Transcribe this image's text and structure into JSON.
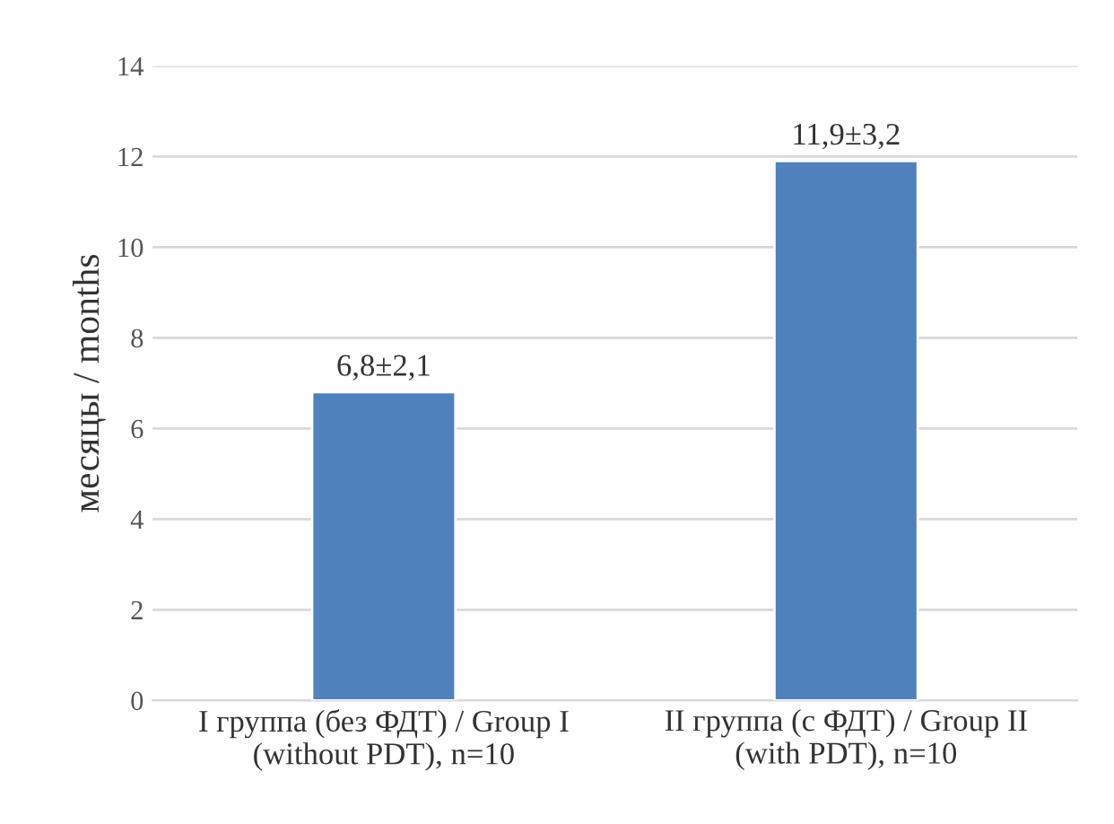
{
  "chart_data": {
    "type": "bar",
    "ylabel": "месяцы / months",
    "categories": [
      "I группа (без ФДТ) / Group I\n(without PDT), n=10",
      "II группа (с ФДТ) / Group II\n(with PDT), n=10"
    ],
    "values": [
      6.8,
      11.9
    ],
    "value_labels": [
      "6,8±2,1",
      "11,9±3,2"
    ],
    "color": "#4f81bd",
    "ylim": [
      0,
      14
    ],
    "yticks": [
      0,
      2,
      4,
      6,
      8,
      10,
      12,
      14
    ],
    "grid": "y",
    "legend": false
  }
}
